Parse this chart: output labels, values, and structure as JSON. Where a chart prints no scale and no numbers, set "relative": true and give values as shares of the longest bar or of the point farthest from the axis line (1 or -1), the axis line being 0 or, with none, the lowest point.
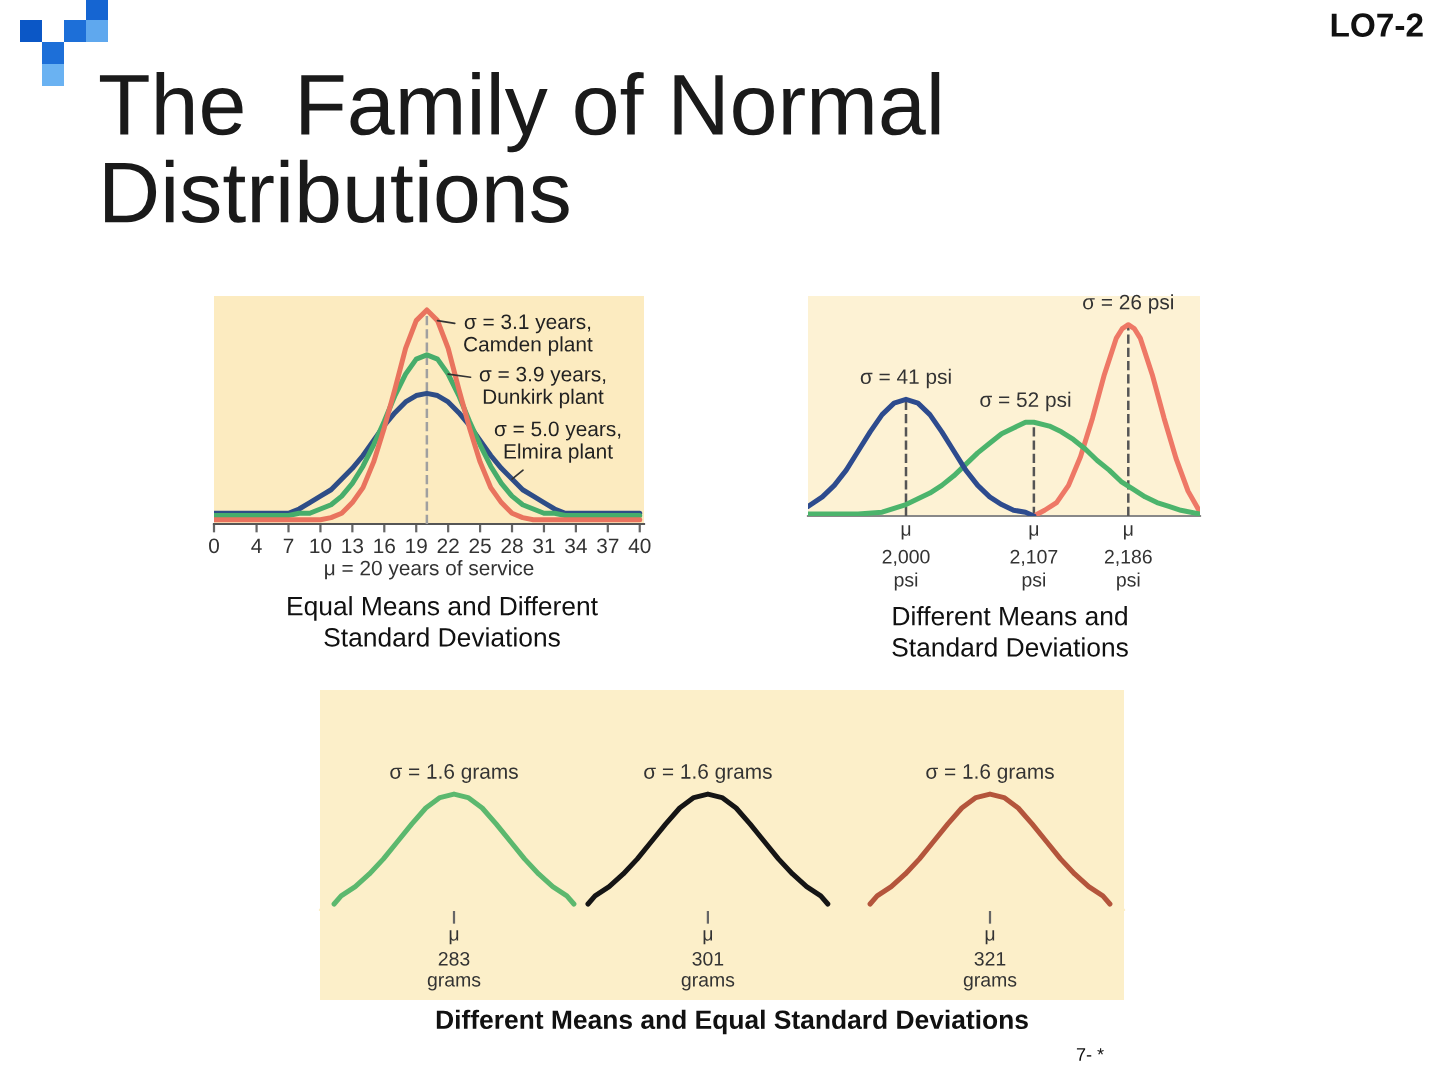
{
  "chart_data": [
    {
      "type": "line",
      "title": "Equal Means and Different\nStandard Deviations",
      "xlabel": "μ = 20 years of service",
      "relative": true,
      "tick_labels": "x",
      "xlim": [
        0,
        40.4
      ],
      "xticks": [
        0,
        4,
        7,
        10,
        13,
        16,
        19,
        22,
        25,
        28,
        31,
        34,
        37,
        40
      ],
      "ref_lines": [
        {
          "axis": "x",
          "value": 20,
          "color": "#a0a0a0",
          "line_style": "dashed"
        }
      ],
      "series": [
        {
          "name": "σ = 3.1 years,\nCamden plant",
          "color": "#e9735e",
          "x": [
            0,
            5,
            9,
            10,
            11,
            12,
            13,
            14,
            15,
            16,
            17,
            18,
            19,
            20,
            21,
            22,
            23,
            24,
            25,
            26,
            27,
            28,
            29,
            30,
            31,
            35,
            40
          ],
          "values": [
            0.02,
            0.02,
            0.02,
            0.02,
            0.03,
            0.05,
            0.1,
            0.17,
            0.29,
            0.45,
            0.63,
            0.82,
            0.95,
            1.0,
            0.95,
            0.82,
            0.63,
            0.45,
            0.29,
            0.17,
            0.1,
            0.05,
            0.03,
            0.02,
            0.02,
            0.02,
            0.02
          ]
        },
        {
          "name": "σ = 3.9 years,\nDunkirk plant",
          "color": "#47ad6b",
          "x": [
            0,
            5,
            7,
            8,
            9,
            10,
            11,
            12,
            13,
            14,
            15,
            16,
            17,
            18,
            19,
            20,
            21,
            22,
            23,
            24,
            25,
            26,
            27,
            28,
            29,
            30,
            31,
            32,
            33,
            35,
            40
          ],
          "values": [
            0.04,
            0.04,
            0.04,
            0.05,
            0.05,
            0.07,
            0.09,
            0.13,
            0.19,
            0.27,
            0.37,
            0.48,
            0.6,
            0.7,
            0.77,
            0.79,
            0.77,
            0.7,
            0.6,
            0.48,
            0.37,
            0.27,
            0.19,
            0.13,
            0.09,
            0.07,
            0.05,
            0.05,
            0.04,
            0.04,
            0.04
          ]
        },
        {
          "name": "σ = 5.0 years,\nElmira plant",
          "color": "#2e4d87",
          "x": [
            0,
            5,
            7,
            8,
            9,
            10,
            11,
            12,
            13,
            14,
            15,
            16,
            17,
            18,
            19,
            20,
            21,
            22,
            23,
            24,
            25,
            26,
            27,
            28,
            29,
            30,
            31,
            32,
            33,
            35,
            40
          ],
          "values": [
            0.05,
            0.05,
            0.05,
            0.07,
            0.1,
            0.13,
            0.16,
            0.21,
            0.26,
            0.32,
            0.39,
            0.46,
            0.52,
            0.57,
            0.6,
            0.61,
            0.6,
            0.57,
            0.52,
            0.46,
            0.39,
            0.32,
            0.26,
            0.21,
            0.16,
            0.13,
            0.1,
            0.07,
            0.05,
            0.05,
            0.05
          ]
        }
      ]
    },
    {
      "type": "line",
      "title": "Different Means and\nStandard Deviations",
      "relative": true,
      "tick_labels": "x",
      "xlim": [
        1918,
        2246
      ],
      "xticks": [
        {
          "value": 2000,
          "label": "2,000\npsi"
        },
        {
          "value": 2107,
          "label": "2,107\npsi"
        },
        {
          "value": 2186,
          "label": "2,186\npsi"
        }
      ],
      "annotations": [
        {
          "text": "μ",
          "x": 2000,
          "y": 0
        },
        {
          "text": "μ",
          "x": 2107,
          "y": 0
        },
        {
          "text": "μ",
          "x": 2186,
          "y": 0
        }
      ],
      "ref_lines": [
        {
          "axis": "x",
          "value": 2000,
          "color": "#555555",
          "line_style": "dashed"
        },
        {
          "axis": "x",
          "value": 2107,
          "color": "#555555",
          "line_style": "dashed"
        },
        {
          "axis": "x",
          "value": 2186,
          "color": "#555555",
          "line_style": "dashed"
        }
      ],
      "series": [
        {
          "name": "σ = 41 psi",
          "color": "#2d4b8e",
          "x": [
            1918,
            1930,
            1940,
            1950,
            1960,
            1970,
            1980,
            1990,
            2000,
            2010,
            2020,
            2030,
            2040,
            2050,
            2060,
            2070,
            2080,
            2090,
            2100,
            2107
          ],
          "values": [
            0.05,
            0.1,
            0.16,
            0.24,
            0.34,
            0.44,
            0.53,
            0.59,
            0.61,
            0.59,
            0.53,
            0.44,
            0.34,
            0.24,
            0.16,
            0.1,
            0.06,
            0.03,
            0.02,
            0.0
          ]
        },
        {
          "name": "σ = 52 psi",
          "color": "#4cb46c",
          "x": [
            1918,
            1940,
            1960,
            1980,
            1990,
            2000,
            2010,
            2020,
            2030,
            2040,
            2050,
            2060,
            2070,
            2080,
            2090,
            2100,
            2107,
            2120,
            2130,
            2140,
            2150,
            2160,
            2170,
            2180,
            2190,
            2200,
            2210,
            2220,
            2230,
            2246
          ],
          "values": [
            0.01,
            0.01,
            0.01,
            0.02,
            0.04,
            0.06,
            0.09,
            0.12,
            0.16,
            0.21,
            0.27,
            0.33,
            0.38,
            0.43,
            0.46,
            0.49,
            0.49,
            0.47,
            0.44,
            0.4,
            0.35,
            0.29,
            0.24,
            0.18,
            0.14,
            0.1,
            0.07,
            0.05,
            0.03,
            0.01
          ]
        },
        {
          "name": "σ = 26 psi",
          "color": "#ee7866",
          "x": [
            2107,
            2116,
            2126,
            2136,
            2146,
            2156,
            2166,
            2176,
            2181,
            2186,
            2191,
            2196,
            2206,
            2216,
            2226,
            2236,
            2246
          ],
          "values": [
            0.0,
            0.03,
            0.07,
            0.16,
            0.31,
            0.51,
            0.74,
            0.93,
            0.98,
            1.0,
            0.98,
            0.93,
            0.74,
            0.51,
            0.3,
            0.13,
            0.02
          ]
        }
      ]
    },
    {
      "type": "line",
      "title": "Different Means and Equal Standard Deviations",
      "relative": true,
      "tick_labels": "x",
      "xlim": [
        273.5,
        330.5
      ],
      "xticks": [
        {
          "value": 283,
          "label": "283\ngrams"
        },
        {
          "value": 301,
          "label": "301\ngrams"
        },
        {
          "value": 321,
          "label": "321\ngrams"
        }
      ],
      "annotations": [
        "μ",
        "μ",
        "μ"
      ],
      "series": [
        {
          "name": "σ = 1.6 grams",
          "color": "#5cb86e",
          "x": [
            274.5,
            275,
            276,
            277,
            278,
            279,
            280,
            281,
            282,
            283,
            284,
            285,
            286,
            287,
            288,
            289,
            290,
            291,
            291.5
          ],
          "values": [
            0.05,
            0.12,
            0.2,
            0.31,
            0.44,
            0.59,
            0.74,
            0.88,
            0.97,
            1.0,
            0.97,
            0.88,
            0.74,
            0.59,
            0.44,
            0.31,
            0.2,
            0.12,
            0.05
          ]
        },
        {
          "name": "σ = 1.6 grams",
          "color": "#151515",
          "x": [
            292.5,
            293,
            294,
            295,
            296,
            297,
            298,
            299,
            300,
            301,
            302,
            303,
            304,
            305,
            306,
            307,
            308,
            309,
            309.5
          ],
          "values": [
            0.05,
            0.12,
            0.2,
            0.31,
            0.44,
            0.59,
            0.74,
            0.88,
            0.97,
            1.0,
            0.97,
            0.88,
            0.74,
            0.59,
            0.44,
            0.31,
            0.2,
            0.12,
            0.05
          ]
        },
        {
          "name": "σ = 1.6 grams",
          "color": "#b4553c",
          "x": [
            312.5,
            313,
            314,
            315,
            316,
            317,
            318,
            319,
            320,
            321,
            322,
            323,
            324,
            325,
            326,
            327,
            328,
            329,
            329.5
          ],
          "values": [
            0.05,
            0.12,
            0.2,
            0.31,
            0.44,
            0.59,
            0.74,
            0.88,
            0.97,
            1.0,
            0.97,
            0.88,
            0.74,
            0.59,
            0.44,
            0.31,
            0.2,
            0.12,
            0.05
          ]
        }
      ]
    },
    {
      "type": "other",
      "title": "The  Family of Normal\nDistributions",
      "annotations": [
        "LO7-2",
        "7- *"
      ]
    }
  ]
}
